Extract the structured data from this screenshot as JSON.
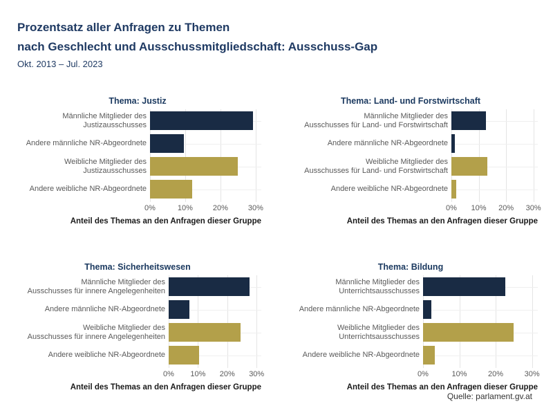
{
  "header": {
    "title_line1": "Prozentsatz aller Anfragen zu Themen",
    "title_line2": "nach Geschlecht und Ausschussmitgliedschaft: Ausschuss-Gap",
    "subtitle": "Okt. 2013 – Jul. 2023"
  },
  "footer": {
    "source": "Quelle: parlament.gv.at"
  },
  "colors": {
    "male_bar": "#192b44",
    "female_bar": "#b3a04a",
    "title_navy": "#1f3a63",
    "panel_title_navy": "#1c3a60",
    "label_gray": "#595959",
    "axis_label_dark": "#1a1a1a",
    "gridline": "#e4e4e4"
  },
  "chart_data": [
    {
      "type": "bar",
      "orientation": "horizontal",
      "title": "Thema: Justiz",
      "categories": [
        [
          "Männliche Mitglieder des",
          "Justizausschusses"
        ],
        [
          "Andere männliche NR-Abgeordnete"
        ],
        [
          "Weibliche Mitglieder des",
          "Justizausschusses"
        ],
        [
          "Andere weibliche NR-Abgeordnete"
        ]
      ],
      "values": [
        29.3,
        9.6,
        24.9,
        12.0
      ],
      "bar_color_keys": [
        "male_bar",
        "male_bar",
        "female_bar",
        "female_bar"
      ],
      "xlabel": "Anteil des Themas an den Anfragen dieser Gruppe",
      "x_tick_labels": [
        "0%",
        "10%",
        "20%",
        "30%"
      ],
      "x_tick_values": [
        0,
        10,
        20,
        30
      ],
      "xlim": [
        0,
        31.6
      ],
      "grid": true,
      "legend": false
    },
    {
      "type": "bar",
      "orientation": "horizontal",
      "title": "Thema: Land- und Forstwirtschaft",
      "categories": [
        [
          "Männliche Mitglieder des",
          "Ausschusses für Land- und Forstwirtschaft"
        ],
        [
          "Andere männliche NR-Abgeordnete"
        ],
        [
          "Weibliche Mitglieder des",
          "Ausschusses für Land- und Forstwirtschaft"
        ],
        [
          "Andere weibliche NR-Abgeordnete"
        ]
      ],
      "values": [
        12.6,
        1.3,
        13.2,
        1.8
      ],
      "bar_color_keys": [
        "male_bar",
        "male_bar",
        "female_bar",
        "female_bar"
      ],
      "xlabel": "Anteil des Themas an den Anfragen dieser Gruppe",
      "x_tick_labels": [
        "0%",
        "10%",
        "20%",
        "30%"
      ],
      "x_tick_values": [
        0,
        10,
        20,
        30
      ],
      "xlim": [
        0,
        31.6
      ],
      "grid": true,
      "legend": false
    },
    {
      "type": "bar",
      "orientation": "horizontal",
      "title": "Thema: Sicherheitswesen",
      "categories": [
        [
          "Männliche Mitglieder des",
          "Ausschusses für innere Angelegenheiten"
        ],
        [
          "Andere männliche NR-Abgeordnete"
        ],
        [
          "Weibliche Mitglieder des",
          "Ausschusses für innere Angelegenheiten"
        ],
        [
          "Andere weibliche NR-Abgeordnete"
        ]
      ],
      "values": [
        27.6,
        7.0,
        24.5,
        10.3
      ],
      "bar_color_keys": [
        "male_bar",
        "male_bar",
        "female_bar",
        "female_bar"
      ],
      "xlabel": "Anteil des Themas an den Anfragen dieser Gruppe",
      "x_tick_labels": [
        "0%",
        "10%",
        "20%",
        "30%"
      ],
      "x_tick_values": [
        0,
        10,
        20,
        30
      ],
      "xlim": [
        0,
        31.6
      ],
      "grid": true,
      "legend": false
    },
    {
      "type": "bar",
      "orientation": "horizontal",
      "title": "Thema: Bildung",
      "categories": [
        [
          "Männliche Mitglieder des",
          "Unterrichtsausschusses"
        ],
        [
          "Andere männliche NR-Abgeordnete"
        ],
        [
          "Weibliche Mitglieder des",
          "Unterrichtsausschusses"
        ],
        [
          "Andere weibliche NR-Abgeordnete"
        ]
      ],
      "values": [
        22.6,
        2.2,
        24.9,
        3.3
      ],
      "bar_color_keys": [
        "male_bar",
        "male_bar",
        "female_bar",
        "female_bar"
      ],
      "xlabel": "Anteil des Themas an den Anfragen dieser Gruppe",
      "x_tick_labels": [
        "0%",
        "10%",
        "20%",
        "30%"
      ],
      "x_tick_values": [
        0,
        10,
        20,
        30
      ],
      "xlim": [
        0,
        31.6
      ],
      "grid": true,
      "legend": false
    }
  ]
}
